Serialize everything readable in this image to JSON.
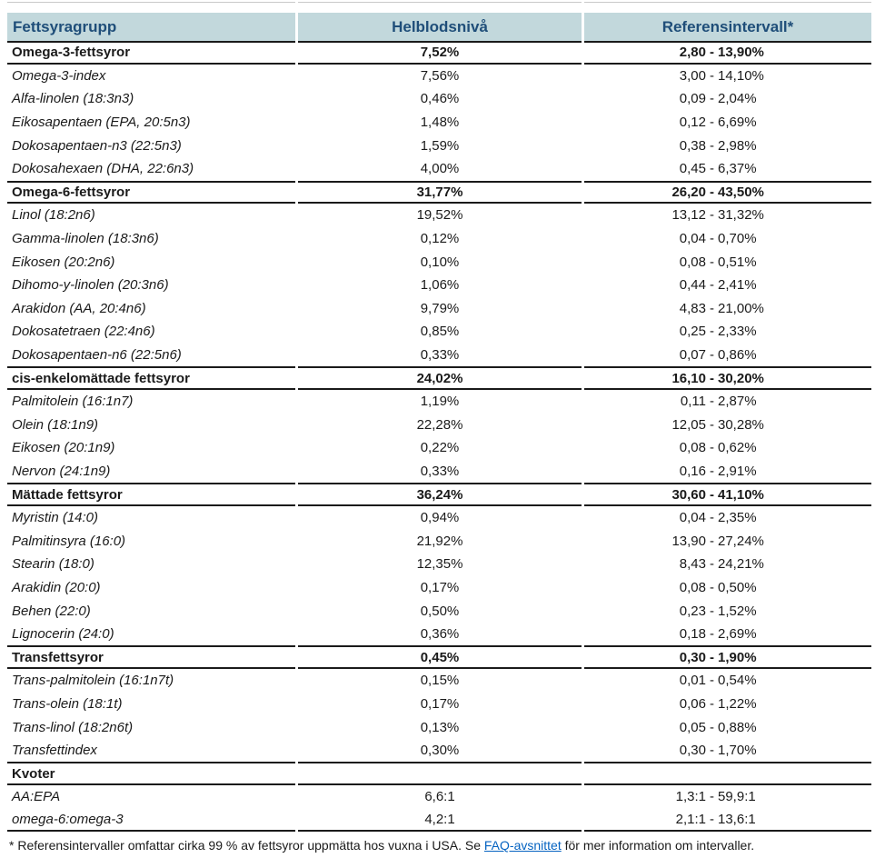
{
  "table": {
    "columns": [
      "Fettsyragrupp",
      "Helblodsnivå",
      "Referensintervall*"
    ],
    "range_separator": "-",
    "sections": [
      {
        "header": {
          "name": "Omega-3-fettsyror",
          "level": "7,52%",
          "low": "2,80",
          "high": "13,90%"
        },
        "rows": [
          {
            "name": "Omega-3-index",
            "level": "7,56%",
            "low": "3,00",
            "high": "14,10%"
          },
          {
            "name": "Alfa-linolen (18:3n3)",
            "level": "0,46%",
            "low": "0,09",
            "high": "2,04%"
          },
          {
            "name": "Eikosapentaen (EPA, 20:5n3)",
            "level": "1,48%",
            "low": "0,12",
            "high": "6,69%"
          },
          {
            "name": "Dokosapentaen-n3 (22:5n3)",
            "level": "1,59%",
            "low": "0,38",
            "high": "2,98%"
          },
          {
            "name": "Dokosahexaen (DHA, 22:6n3)",
            "level": "4,00%",
            "low": "0,45",
            "high": "6,37%"
          }
        ]
      },
      {
        "header": {
          "name": "Omega-6-fettsyror",
          "level": "31,77%",
          "low": "26,20",
          "high": "43,50%"
        },
        "rows": [
          {
            "name": "Linol (18:2n6)",
            "level": "19,52%",
            "low": "13,12",
            "high": "31,32%"
          },
          {
            "name": "Gamma-linolen (18:3n6)",
            "level": "0,12%",
            "low": "0,04",
            "high": "0,70%"
          },
          {
            "name": "Eikosen (20:2n6)",
            "level": "0,10%",
            "low": "0,08",
            "high": "0,51%"
          },
          {
            "name": "Dihomo-y-linolen (20:3n6)",
            "level": "1,06%",
            "low": "0,44",
            "high": "2,41%"
          },
          {
            "name": "Arakidon (AA, 20:4n6)",
            "level": "9,79%",
            "low": "4,83",
            "high": "21,00%"
          },
          {
            "name": "Dokosatetraen (22:4n6)",
            "level": "0,85%",
            "low": "0,25",
            "high": "2,33%"
          },
          {
            "name": "Dokosapentaen-n6 (22:5n6)",
            "level": "0,33%",
            "low": "0,07",
            "high": "0,86%"
          }
        ]
      },
      {
        "header": {
          "name": "cis-enkelomättade fettsyror",
          "level": "24,02%",
          "low": "16,10",
          "high": "30,20%"
        },
        "rows": [
          {
            "name": "Palmitolein (16:1n7)",
            "level": "1,19%",
            "low": "0,11",
            "high": "2,87%"
          },
          {
            "name": "Olein (18:1n9)",
            "level": "22,28%",
            "low": "12,05",
            "high": "30,28%"
          },
          {
            "name": "Eikosen (20:1n9)",
            "level": "0,22%",
            "low": "0,08",
            "high": "0,62%"
          },
          {
            "name": "Nervon (24:1n9)",
            "level": "0,33%",
            "low": "0,16",
            "high": "2,91%"
          }
        ]
      },
      {
        "header": {
          "name": "Mättade fettsyror",
          "level": "36,24%",
          "low": "30,60",
          "high": "41,10%"
        },
        "rows": [
          {
            "name": "Myristin (14:0)",
            "level": "0,94%",
            "low": "0,04",
            "high": "2,35%"
          },
          {
            "name": "Palmitinsyra (16:0)",
            "level": "21,92%",
            "low": "13,90",
            "high": "27,24%"
          },
          {
            "name": "Stearin (18:0)",
            "level": "12,35%",
            "low": "8,43",
            "high": "24,21%"
          },
          {
            "name": "Arakidin (20:0)",
            "level": "0,17%",
            "low": "0,08",
            "high": "0,50%"
          },
          {
            "name": "Behen (22:0)",
            "level": "0,50%",
            "low": "0,23",
            "high": "1,52%"
          },
          {
            "name": "Lignocerin (24:0)",
            "level": "0,36%",
            "low": "0,18",
            "high": "2,69%"
          }
        ]
      },
      {
        "header": {
          "name": "Transfettsyror",
          "level": "0,45%",
          "low": "0,30",
          "high": "1,90%"
        },
        "rows": [
          {
            "name": "Trans-palmitolein (16:1n7t)",
            "level": "0,15%",
            "low": "0,01",
            "high": "0,54%"
          },
          {
            "name": "Trans-olein (18:1t)",
            "level": "0,17%",
            "low": "0,06",
            "high": "1,22%"
          },
          {
            "name": "Trans-linol (18:2n6t)",
            "level": "0,13%",
            "low": "0,05",
            "high": "0,88%"
          },
          {
            "name": "Transfettindex",
            "level": "0,30%",
            "low": "0,30",
            "high": "1,70%"
          }
        ]
      },
      {
        "header": {
          "name": "Kvoter",
          "level": null,
          "low": null,
          "high": null
        },
        "rows": [
          {
            "name": "AA:EPA",
            "level": "6,6:1",
            "low": "1,3:1",
            "high": "59,9:1"
          },
          {
            "name": "omega-6:omega-3",
            "level": "4,2:1",
            "low": "2,1:1",
            "high": "13,6:1"
          }
        ]
      }
    ]
  },
  "footnote": {
    "prefix": "* Referensintervaller omfattar cirka 99 % av fettsyror uppmätta hos vuxna i USA. Se ",
    "link_label": "FAQ-avsnittet",
    "suffix": " för mer information om intervaller."
  },
  "colors": {
    "header_background": "#c2d8dc",
    "header_text": "#1f4e79",
    "rule": "#1a1a1a",
    "top_rule": "#c9c9c9",
    "link": "#0563c1",
    "body_text": "#1a1a1a"
  }
}
